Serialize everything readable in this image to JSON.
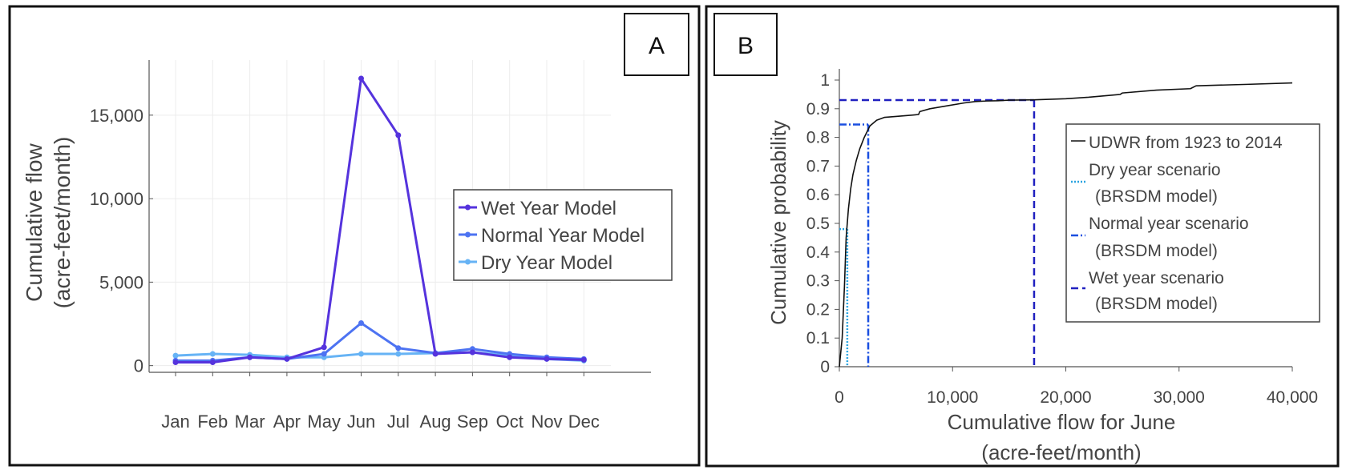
{
  "panels": {
    "a_label": "A",
    "b_label": "B"
  },
  "chart_data": [
    {
      "type": "line",
      "panel": "A",
      "categories": [
        "Jan",
        "Feb",
        "Mar",
        "Apr",
        "May",
        "Jun",
        "Jul",
        "Aug",
        "Sep",
        "Oct",
        "Nov",
        "Dec"
      ],
      "ylabel_line1": "Cumulative flow",
      "ylabel_line2": "(acre-feet/month)",
      "ylim": [
        -400,
        18300
      ],
      "yticks": [
        0,
        5000,
        10000,
        15000
      ],
      "ytick_labels": [
        "0",
        "5,000",
        "10,000",
        "15,000"
      ],
      "grid": true,
      "legend_position": "center-right",
      "series": [
        {
          "name": "Wet Year Model",
          "color": "#5533dd",
          "values": [
            200,
            200,
            500,
            400,
            1100,
            17200,
            13800,
            700,
            800,
            500,
            400,
            350
          ]
        },
        {
          "name": "Normal Year Model",
          "color": "#4d73f2",
          "values": [
            300,
            300,
            500,
            400,
            700,
            2550,
            1050,
            750,
            1000,
            700,
            500,
            400
          ]
        },
        {
          "name": "Dry Year Model",
          "color": "#66b3f5",
          "values": [
            600,
            700,
            650,
            500,
            500,
            700,
            700,
            750,
            800,
            600,
            400,
            300
          ]
        }
      ]
    },
    {
      "type": "line",
      "panel": "B",
      "xlabel_line1": "Cumulative flow for June",
      "xlabel_line2": "(acre-feet/month)",
      "ylabel": "Cumulative probability",
      "xlim": [
        0,
        40000
      ],
      "ylim": [
        0,
        1
      ],
      "xticks": [
        0,
        10000,
        20000,
        30000,
        40000
      ],
      "xtick_labels": [
        "0",
        "10,000",
        "20,000",
        "30,000",
        "40,000"
      ],
      "yticks": [
        0,
        0.1,
        0.2,
        0.3,
        0.4,
        0.5,
        0.6,
        0.7,
        0.8,
        0.9,
        1
      ],
      "ytick_labels": [
        "0",
        "0.1",
        "0.2",
        "0.3",
        "0.4",
        "0.5",
        "0.6",
        "0.7",
        "0.8",
        "0.9",
        "1"
      ],
      "legend_position": "right",
      "cdf": {
        "name": "UDWR from 1923 to 2014",
        "color": "#111111",
        "x": [
          0,
          250,
          450,
          600,
          800,
          1000,
          1200,
          1500,
          1800,
          2200,
          2700,
          3300,
          4000,
          5000,
          6500,
          7000,
          7100,
          8000,
          9500,
          11000,
          12000,
          13000,
          14000,
          15000,
          17200,
          20000,
          22000,
          24800,
          25000,
          28000,
          31000,
          31500,
          36000,
          40000
        ],
        "y": [
          0,
          0.1,
          0.28,
          0.45,
          0.55,
          0.62,
          0.67,
          0.72,
          0.76,
          0.8,
          0.84,
          0.86,
          0.87,
          0.873,
          0.878,
          0.88,
          0.89,
          0.9,
          0.91,
          0.92,
          0.925,
          0.927,
          0.928,
          0.93,
          0.931,
          0.935,
          0.94,
          0.95,
          0.955,
          0.965,
          0.97,
          0.98,
          0.985,
          0.99
        ]
      },
      "scenarios": [
        {
          "name_line1": "Dry year scenario",
          "name_line2": "(BRSDM model)",
          "color": "#29a3e0",
          "dash": "2,2",
          "x": 700,
          "y": 0.48
        },
        {
          "name_line1": "Normal year scenario",
          "name_line2": "(BRSDM model)",
          "color": "#1a4fe0",
          "dash": "9,3,2,3",
          "x": 2550,
          "y": 0.845
        },
        {
          "name_line1": "Wet year scenario",
          "name_line2": "(BRSDM model)",
          "color": "#2020c0",
          "dash": "9,5",
          "x": 17200,
          "y": 0.93
        }
      ]
    }
  ]
}
